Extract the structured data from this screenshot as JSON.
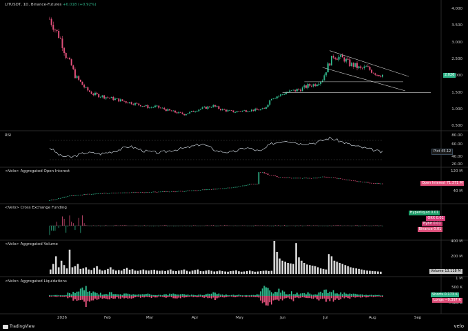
{
  "header": {
    "symbol": "LITUSDT",
    "interval": "1D",
    "exchange": "Binance-Futures",
    "change": "+0.018 (+0.92%)"
  },
  "price_axis": [
    "4.000",
    "3.500",
    "3.000",
    "2.500",
    "2.000",
    "1.500",
    "1.000",
    "0.500"
  ],
  "price_tag": "2.026",
  "panes": {
    "rsi": {
      "title": "RSI",
      "ticks": [
        "80.00",
        "60.00",
        "40.00",
        "20.00"
      ],
      "tag": "Plot",
      "tag_value": "45.12"
    },
    "oi": {
      "title": "<Velo> Aggregated Open Interest",
      "ticks": [
        "120 M",
        "40 M"
      ],
      "tag": "Open Interest",
      "tag_value": "71.371 M"
    },
    "funding": {
      "title": "<Velo> Cross Exchange Funding",
      "tags": [
        {
          "label": "Hyperliquid",
          "value": "0.01",
          "color": "#1e9e6a"
        },
        {
          "label": "OKX",
          "value": "0.01",
          "color": "#d63c7a"
        },
        {
          "label": "Bybit",
          "value": "0.01",
          "color": "#c8386e"
        },
        {
          "label": "Binance",
          "value": "0.01",
          "color": "#e0527d"
        }
      ]
    },
    "volume": {
      "title": "<Velo> Aggregated Volume",
      "ticks": [
        "400 M",
        "200 M"
      ],
      "tag": "Volume",
      "tag_value": "13.118 M"
    },
    "liq": {
      "title": "<Velo> Aggregated Liquidations",
      "ticks": [
        "1 M",
        "500 K",
        "−500 K"
      ],
      "shorts_label": "Shorts",
      "shorts_value": "0.173 K",
      "longs_label": "Longs",
      "longs_value": "−9.397 K"
    }
  },
  "x_axis": [
    "2026",
    "Feb",
    "Mar",
    "Apr",
    "May",
    "Jun",
    "Jul",
    "Aug",
    "Sep"
  ],
  "footer": {
    "brand_left": "TradingView",
    "brand_right": "velo"
  },
  "colors": {
    "up": "#2fb58a",
    "down": "#e0507a",
    "tag_price": "#2fb58a",
    "tag_oi": "#e0507a"
  },
  "chart_data": {
    "type": "candlestick",
    "price_series": [
      [
        0,
        3.7
      ],
      [
        3,
        3.4
      ],
      [
        6,
        3.1
      ],
      [
        9,
        2.6
      ],
      [
        12,
        2.3
      ],
      [
        14,
        2.0
      ],
      [
        17,
        1.8
      ],
      [
        20,
        1.6
      ],
      [
        24,
        1.45
      ],
      [
        28,
        1.4
      ],
      [
        32,
        1.35
      ],
      [
        36,
        1.3
      ],
      [
        40,
        1.25
      ],
      [
        44,
        1.2
      ],
      [
        48,
        1.15
      ],
      [
        52,
        1.1
      ],
      [
        55,
        1.05
      ],
      [
        58,
        1.08
      ],
      [
        62,
        1.02
      ],
      [
        66,
        0.95
      ],
      [
        70,
        0.9
      ],
      [
        74,
        0.85
      ],
      [
        78,
        0.92
      ],
      [
        82,
        1.0
      ],
      [
        86,
        1.05
      ],
      [
        90,
        1.1
      ],
      [
        94,
        1.0
      ],
      [
        98,
        0.95
      ],
      [
        102,
        0.92
      ],
      [
        106,
        0.95
      ],
      [
        110,
        0.97
      ],
      [
        114,
        0.98
      ],
      [
        118,
        1.0
      ],
      [
        122,
        1.35
      ],
      [
        126,
        1.4
      ],
      [
        130,
        1.5
      ],
      [
        134,
        1.55
      ],
      [
        138,
        1.6
      ],
      [
        142,
        1.7
      ],
      [
        146,
        1.75
      ],
      [
        150,
        1.9
      ],
      [
        153,
        2.3
      ],
      [
        156,
        2.6
      ],
      [
        159,
        2.55
      ],
      [
        162,
        2.5
      ],
      [
        165,
        2.35
      ],
      [
        168,
        2.3
      ],
      [
        171,
        2.2
      ],
      [
        174,
        2.25
      ],
      [
        177,
        2.15
      ],
      [
        180,
        2.05
      ],
      [
        183,
        2.03
      ]
    ],
    "rsi_series": [
      [
        0,
        55
      ],
      [
        6,
        38
      ],
      [
        12,
        35
      ],
      [
        20,
        45
      ],
      [
        28,
        42
      ],
      [
        36,
        48
      ],
      [
        44,
        58
      ],
      [
        52,
        48
      ],
      [
        60,
        44
      ],
      [
        68,
        50
      ],
      [
        76,
        55
      ],
      [
        84,
        63
      ],
      [
        92,
        48
      ],
      [
        100,
        45
      ],
      [
        108,
        55
      ],
      [
        116,
        47
      ],
      [
        122,
        63
      ],
      [
        130,
        70
      ],
      [
        138,
        63
      ],
      [
        146,
        65
      ],
      [
        154,
        75
      ],
      [
        160,
        68
      ],
      [
        166,
        60
      ],
      [
        172,
        55
      ],
      [
        178,
        50
      ],
      [
        183,
        45
      ]
    ],
    "oi_series": [
      [
        0,
        2
      ],
      [
        10,
        20
      ],
      [
        20,
        28
      ],
      [
        30,
        32
      ],
      [
        40,
        34
      ],
      [
        50,
        36
      ],
      [
        60,
        38
      ],
      [
        70,
        40
      ],
      [
        80,
        44
      ],
      [
        88,
        48
      ],
      [
        96,
        52
      ],
      [
        104,
        60
      ],
      [
        110,
        70
      ],
      [
        114,
        70
      ],
      [
        115,
        120
      ],
      [
        117,
        118
      ],
      [
        120,
        110
      ],
      [
        125,
        100
      ],
      [
        135,
        95
      ],
      [
        145,
        95
      ],
      [
        150,
        100
      ],
      [
        155,
        98
      ],
      [
        160,
        92
      ],
      [
        170,
        80
      ],
      [
        183,
        71
      ]
    ],
    "volume_bars": [
      40,
      90,
      160,
      60,
      120,
      80,
      50,
      220,
      60,
      70,
      90,
      45,
      50,
      60,
      40,
      35,
      55,
      70,
      40,
      30,
      35,
      45,
      60,
      40,
      30,
      35,
      30,
      45,
      55,
      38,
      42,
      30,
      28,
      34,
      40,
      32,
      30,
      35,
      38,
      30,
      28,
      30,
      26,
      32,
      40,
      28,
      25,
      30,
      34,
      40,
      28,
      22,
      30,
      35,
      40,
      26,
      24,
      30,
      35,
      28,
      22,
      24,
      30,
      26,
      22,
      20,
      25,
      28,
      32,
      24,
      20,
      22,
      26,
      30,
      24,
      20,
      22,
      25,
      28,
      30,
      26,
      28,
      300,
      200,
      140,
      120,
      110,
      100,
      95,
      90,
      280,
      150,
      120,
      100,
      85,
      80,
      75,
      70,
      60,
      50,
      45,
      40,
      180,
      160,
      120,
      110,
      100,
      90,
      80,
      70,
      60,
      55,
      50,
      45,
      40,
      35,
      30,
      28,
      26,
      24,
      22,
      20
    ],
    "liq_bars": [
      [
        10,
        -15
      ],
      [
        12,
        18
      ],
      [
        15,
        -22
      ],
      [
        17,
        30
      ],
      [
        20,
        -45
      ],
      [
        22,
        25
      ],
      [
        25,
        -18
      ],
      [
        30,
        12
      ],
      [
        35,
        -20
      ],
      [
        40,
        10
      ],
      [
        45,
        -12
      ],
      [
        50,
        8
      ],
      [
        55,
        -10
      ],
      [
        60,
        6
      ],
      [
        65,
        -9
      ],
      [
        70,
        14
      ],
      [
        75,
        -6
      ],
      [
        80,
        5
      ],
      [
        85,
        -8
      ],
      [
        90,
        20
      ],
      [
        95,
        -7
      ],
      [
        100,
        6
      ],
      [
        105,
        -5
      ],
      [
        110,
        5
      ],
      [
        115,
        -8
      ],
      [
        118,
        50
      ],
      [
        120,
        -40
      ],
      [
        122,
        38
      ],
      [
        124,
        -20
      ],
      [
        126,
        30
      ],
      [
        130,
        -15
      ],
      [
        134,
        22
      ],
      [
        138,
        -10
      ],
      [
        142,
        15
      ],
      [
        146,
        -12
      ],
      [
        150,
        25
      ],
      [
        154,
        -30
      ],
      [
        158,
        18
      ],
      [
        162,
        -14
      ],
      [
        166,
        10
      ],
      [
        170,
        -8
      ],
      [
        175,
        6
      ],
      [
        180,
        -5
      ],
      [
        183,
        4
      ]
    ]
  }
}
